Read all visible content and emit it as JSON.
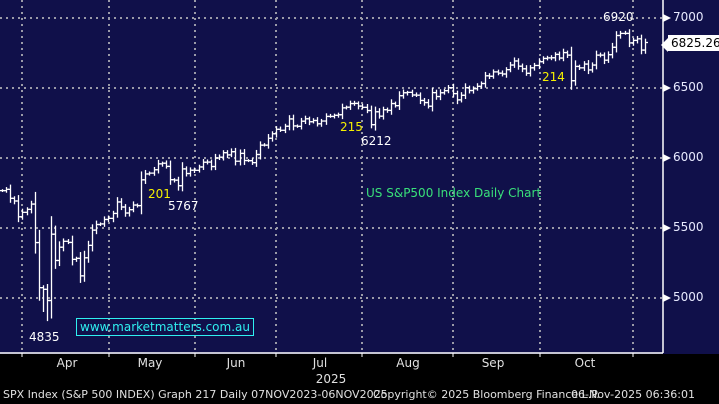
{
  "chart_data": {
    "type": "ohlc",
    "title": "US S&P500 Index Daily Chart",
    "ylim": [
      4650,
      7100
    ],
    "yticks": [
      5000,
      5500,
      6000,
      6500,
      7000
    ],
    "xlabel": "2025",
    "months": [
      "Apr",
      "May",
      "Jun",
      "Jul",
      "Aug",
      "Sep",
      "Oct"
    ],
    "last_price": "6825.26",
    "closes": [
      5767,
      5776,
      5712,
      5693,
      5580,
      5612,
      5633,
      5671,
      5396,
      5074,
      5062,
      4982,
      5456,
      5268,
      5363,
      5405,
      5397,
      5276,
      5283,
      5158,
      5287,
      5376,
      5485,
      5525,
      5529,
      5561,
      5569,
      5604,
      5686,
      5650,
      5607,
      5631,
      5664,
      5660,
      5844,
      5886,
      5892,
      5916,
      5958,
      5963,
      5940,
      5845,
      5842,
      5802,
      5922,
      5889,
      5913,
      5912,
      5936,
      5970,
      5971,
      5939,
      6000,
      6006,
      6038,
      6022,
      6045,
      5977,
      6033,
      5982,
      5981,
      5967,
      6025,
      6092,
      6092,
      6141,
      6173,
      6205,
      6198,
      6227,
      6279,
      6229,
      6226,
      6263,
      6280,
      6259,
      6268,
      6244,
      6264,
      6297,
      6297,
      6305,
      6309,
      6358,
      6363,
      6389,
      6390,
      6371,
      6362,
      6339,
      6238,
      6330,
      6299,
      6345,
      6340,
      6389,
      6374,
      6445,
      6466,
      6469,
      6450,
      6449,
      6411,
      6396,
      6370,
      6467,
      6439,
      6466,
      6481,
      6502,
      6460,
      6415,
      6448,
      6502,
      6482,
      6495,
      6512,
      6532,
      6587,
      6584,
      6615,
      6606,
      6600,
      6631,
      6664,
      6693,
      6656,
      6637,
      6605,
      6644,
      6661,
      6688,
      6711,
      6715,
      6716,
      6740,
      6714,
      6753,
      6735,
      6552,
      6654,
      6644,
      6671,
      6629,
      6664,
      6735,
      6735,
      6699,
      6738,
      6791,
      6875,
      6890,
      6890,
      6822,
      6840,
      6851,
      6771,
      6825
    ],
    "low_overrides": {
      "11": 4835,
      "43": 5767,
      "90": 6212,
      "10": 4900
    },
    "annotations": {
      "high": "6920",
      "low_apr": "4835",
      "low_may": "5767",
      "low_aug": "6212",
      "count_201": "201",
      "count_215": "215",
      "count_214": "214"
    }
  },
  "watermark": "www.marketmatters.com.au",
  "footer": {
    "left": "SPX Index (S&P 500 INDEX) Graph 217 Daily 07NOV2023-06NOV2025",
    "center": "Copyright© 2025 Bloomberg Finance L.P.",
    "right": "06-Nov-2025 06:36:01"
  }
}
